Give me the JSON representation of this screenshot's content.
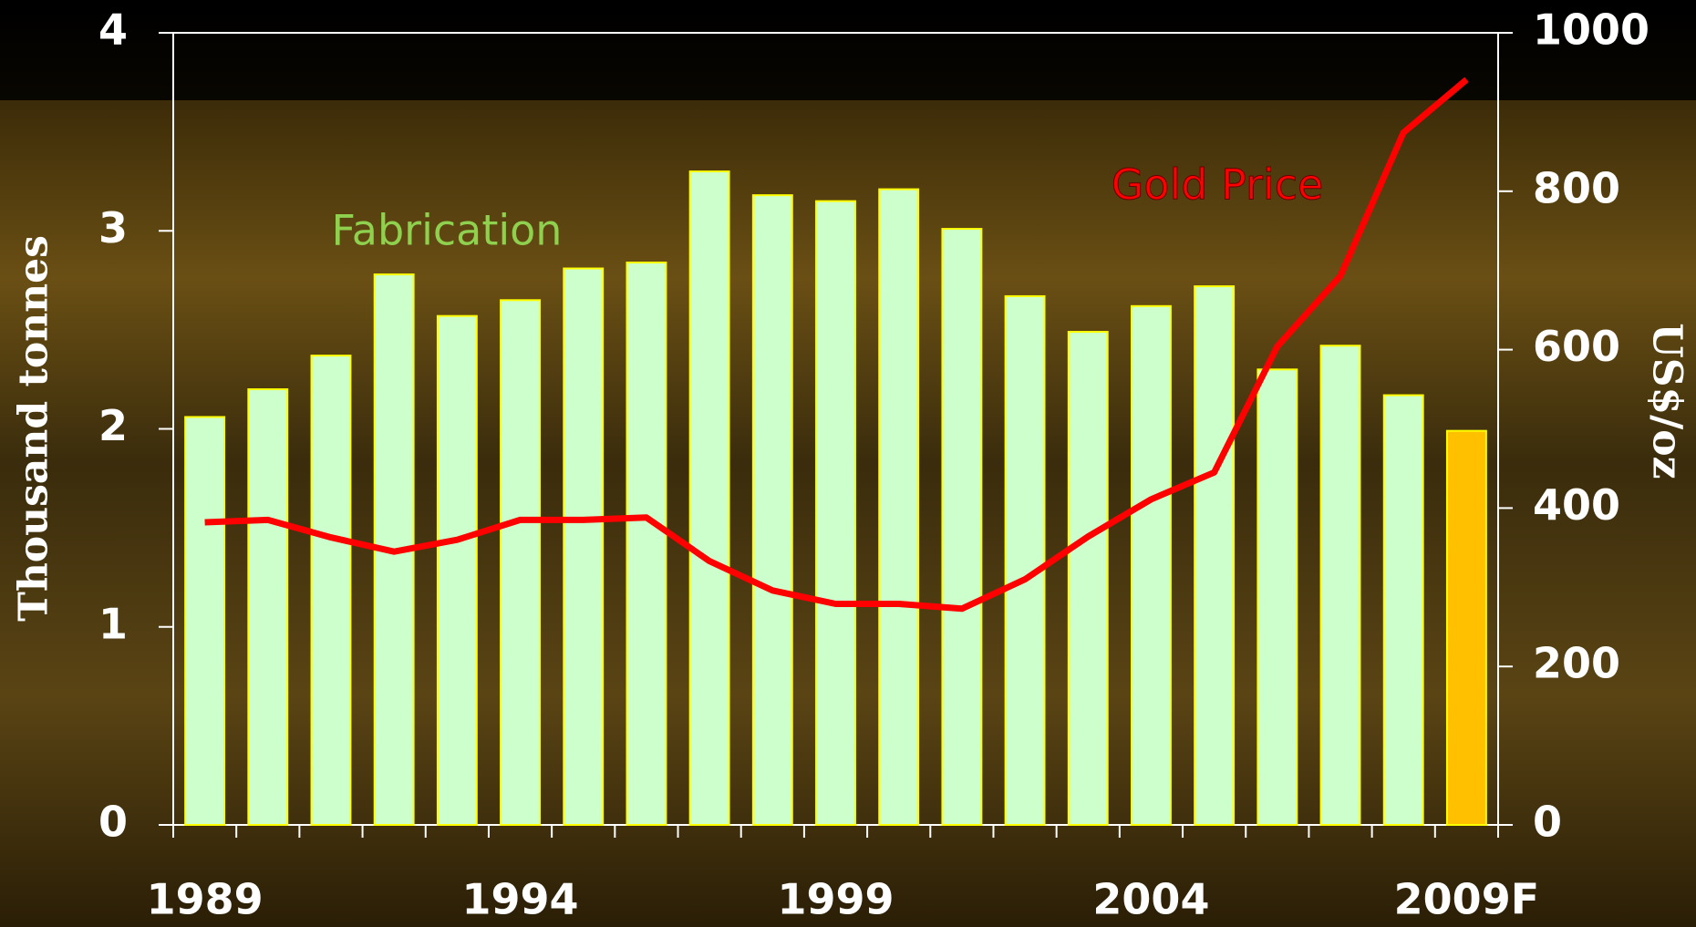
{
  "chart_data": {
    "type": "bar",
    "categories": [
      "1989",
      null,
      null,
      null,
      null,
      "1994",
      null,
      null,
      null,
      null,
      "1999",
      null,
      null,
      null,
      null,
      "2004",
      null,
      null,
      null,
      null,
      "2009F"
    ],
    "series": [
      {
        "name": "Fabrication",
        "type": "bar",
        "color": "#ccffcc",
        "edge_color": "#ffff00",
        "label_color": "#8fd14f",
        "colors": [
          "#ccffcc",
          "#ccffcc",
          "#ccffcc",
          "#ccffcc",
          "#ccffcc",
          "#ccffcc",
          "#ccffcc",
          "#ccffcc",
          "#ccffcc",
          "#ccffcc",
          "#ccffcc",
          "#ccffcc",
          "#ccffcc",
          "#ccffcc",
          "#ccffcc",
          "#ccffcc",
          "#ccffcc",
          "#ccffcc",
          "#ccffcc",
          "#ccffcc",
          "#ffc000"
        ],
        "values": [
          2.06,
          2.2,
          2.37,
          2.78,
          2.57,
          2.65,
          2.81,
          2.84,
          3.3,
          3.18,
          3.15,
          3.21,
          3.01,
          2.67,
          2.49,
          2.62,
          2.72,
          2.3,
          2.42,
          2.17,
          1.99
        ]
      },
      {
        "name": "Gold Price",
        "type": "line",
        "axis": "y2",
        "color": "#ff0000",
        "values": [
          382,
          385,
          363,
          345,
          360,
          385,
          385,
          388,
          333,
          296,
          279,
          279,
          273,
          310,
          364,
          411,
          445,
          604,
          693,
          874,
          941
        ]
      }
    ],
    "ylabel": "Thousand tonnes",
    "y2label": "US$/oz",
    "ylim": [
      0,
      4
    ],
    "yticks": [
      0,
      1,
      2,
      3,
      4
    ],
    "y2lim": [
      0,
      1000
    ],
    "y2ticks": [
      0,
      200,
      400,
      600,
      800,
      1000
    ]
  }
}
